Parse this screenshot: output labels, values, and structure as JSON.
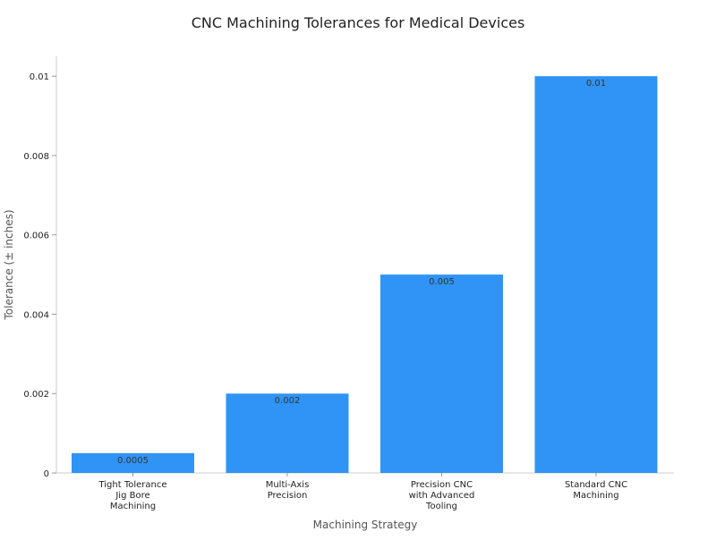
{
  "chart_data": {
    "type": "bar",
    "title": "CNC Machining Tolerances for Medical Devices",
    "xlabel": "Machining Strategy",
    "ylabel": "Tolerance (± inches)",
    "categories": [
      "Tight Tolerance\nJig Bore\nMachining",
      "Multi-Axis\nPrecision",
      "Precision CNC\nwith Advanced\nTooling",
      "Standard CNC\nMachining"
    ],
    "values": [
      0.0005,
      0.002,
      0.005,
      0.01
    ],
    "data_labels": [
      "0.0005",
      "0.002",
      "0.005",
      "0.01"
    ],
    "ylim": [
      0,
      0.0105
    ],
    "yticks": [
      0,
      0.002,
      0.004,
      0.006,
      0.008,
      0.01
    ],
    "ytick_labels": [
      "0",
      "0.002",
      "0.004",
      "0.006",
      "0.008",
      "0.01"
    ],
    "bar_color": "#3094f6",
    "grid": false,
    "legend": "none"
  }
}
